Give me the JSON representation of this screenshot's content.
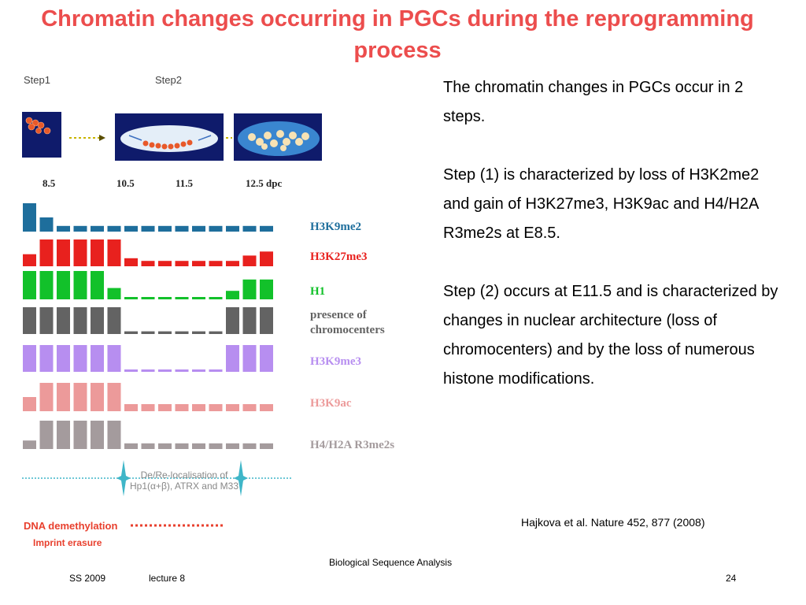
{
  "slide": {
    "title": "Chromatin changes occurring in PGCs during  the reprogramming process",
    "footer_left": "SS 2009",
    "footer_lecture": "lecture 8",
    "footer_center": "Biological Sequence Analysis",
    "page_number": "24"
  },
  "figure": {
    "step1": "Step1",
    "step2": "Step2",
    "time_points": [
      "8.5",
      "10.5",
      "11.5",
      "12.5 dpc"
    ],
    "rows": [
      {
        "label": "H3K9me2",
        "color": "#1e6e9c",
        "pattern": [
          1.0,
          0.5,
          0.2,
          0.2,
          0.2,
          0.2,
          0.2,
          0.2,
          0.2,
          0.2,
          0.2,
          0.2,
          0.2,
          0.2,
          0.2
        ]
      },
      {
        "label": "H3K27me3",
        "color": "#e8211e",
        "pattern": [
          0.45,
          1.0,
          1.0,
          1.0,
          1.0,
          1.0,
          0.3,
          0.2,
          0.2,
          0.2,
          0.2,
          0.2,
          0.2,
          0.4,
          0.55
        ]
      },
      {
        "label": "H1",
        "color": "#12c12a",
        "pattern": [
          1.0,
          1.0,
          1.0,
          1.0,
          1.0,
          0.4,
          0.08,
          0.08,
          0.08,
          0.08,
          0.08,
          0.08,
          0.3,
          0.7,
          0.7
        ]
      },
      {
        "label": "presence of chromocenters",
        "color": "#636363",
        "pattern": [
          1.0,
          1.0,
          1.0,
          1.0,
          1.0,
          1.0,
          0.1,
          0.1,
          0.1,
          0.1,
          0.1,
          0.1,
          1.0,
          1.0,
          1.0
        ]
      },
      {
        "label": "H3K9me3",
        "color": "#b78ef0",
        "pattern": [
          1.0,
          1.0,
          1.0,
          1.0,
          1.0,
          1.0,
          0.08,
          0.08,
          0.08,
          0.08,
          0.08,
          0.08,
          1.0,
          1.0,
          1.0
        ]
      },
      {
        "label": "H3K9ac",
        "color": "#ec9a9a",
        "pattern": [
          0.5,
          1.0,
          1.0,
          1.0,
          1.0,
          1.0,
          0.25,
          0.25,
          0.25,
          0.25,
          0.25,
          0.25,
          0.25,
          0.25,
          0.25
        ]
      },
      {
        "label": "H4/H2A R3me2s",
        "color": "#a49b9d",
        "pattern": [
          0.3,
          1.0,
          1.0,
          1.0,
          1.0,
          1.0,
          0.2,
          0.2,
          0.2,
          0.2,
          0.2,
          0.2,
          0.2,
          0.2,
          0.2
        ]
      }
    ],
    "hp1_text": "De/Re-localisation of Hp1(α+β), ATRX and M33",
    "dna_demethylation": "DNA demethylation",
    "imprint_erasure": "Imprint erasure"
  },
  "body": {
    "p1": "The chromatin changes in PGCs occur in 2 steps.",
    "p2": "Step (1) is characterized by loss of H3K2me2 and gain of H3K27me3, H3K9ac and H4/H2A R3me2s at E8.5.",
    "p3": "Step (2) occurs at E11.5 and is characterized by changes in nuclear architecture (loss of chromocenters) and by the loss of numerous histone modifications.",
    "citation": "Hajkova et al. Nature 452, 877 (2008)"
  }
}
